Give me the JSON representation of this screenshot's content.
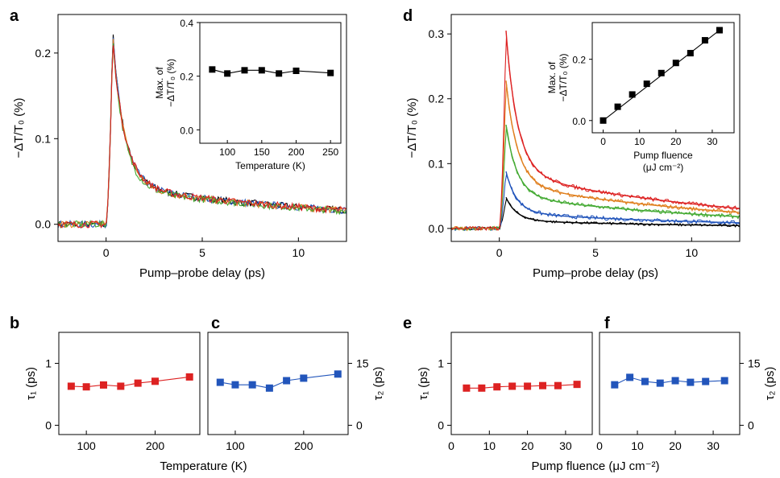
{
  "chart_data": [
    {
      "id": "a",
      "panel_label": "a",
      "type": "line",
      "xlabel": "Pump–probe delay (ps)",
      "ylabel": "−ΔT/T₀ (%)",
      "xlim": [
        -2.5,
        12.5
      ],
      "ylim": [
        -0.02,
        0.245
      ],
      "xticks": [
        0,
        5,
        10
      ],
      "yticks": [
        0.0,
        0.1,
        0.2
      ],
      "ytick_labels": [
        "0.0",
        "0.1",
        "0.2"
      ],
      "series": [
        {
          "color": "#000000",
          "peak": 0.225,
          "a1": 0.165,
          "tau1": 0.63,
          "a2": 0.045,
          "tau2": 12,
          "offset": 0.0,
          "noise": 0.004
        },
        {
          "color": "#2255bb",
          "peak": 0.222,
          "a1": 0.163,
          "tau1": 0.63,
          "a2": 0.045,
          "tau2": 12,
          "offset": 0.0,
          "noise": 0.004
        },
        {
          "color": "#e08020",
          "peak": 0.22,
          "a1": 0.161,
          "tau1": 0.64,
          "a2": 0.044,
          "tau2": 12,
          "offset": 0.0,
          "noise": 0.004
        },
        {
          "color": "#44aa33",
          "peak": 0.218,
          "a1": 0.16,
          "tau1": 0.62,
          "a2": 0.043,
          "tau2": 12,
          "offset": 0.0,
          "noise": 0.004
        },
        {
          "color": "#dd2222",
          "peak": 0.216,
          "a1": 0.158,
          "tau1": 0.66,
          "a2": 0.045,
          "tau2": 12,
          "offset": 0.0,
          "noise": 0.004
        }
      ],
      "inset": {
        "type": "line",
        "xlabel": "Temperature (K)",
        "ylabel_line1": "Max. of",
        "ylabel_line2": "−ΔT/T₀ (%)",
        "xlim": [
          60,
          265
        ],
        "ylim": [
          -0.05,
          0.4
        ],
        "xticks": [
          100,
          150,
          200,
          250
        ],
        "yticks": [
          0.0,
          0.2,
          0.4
        ],
        "ytick_labels": [
          "0.0",
          "0.2",
          "0.4"
        ],
        "x": [
          78,
          100,
          125,
          150,
          175,
          200,
          250
        ],
        "y": [
          0.225,
          0.21,
          0.222,
          0.222,
          0.21,
          0.22,
          0.212
        ]
      }
    },
    {
      "id": "d",
      "panel_label": "d",
      "type": "line",
      "xlabel": "Pump–probe delay (ps)",
      "ylabel": "−ΔT/T₀ (%)",
      "xlim": [
        -2.5,
        12.5
      ],
      "ylim": [
        -0.02,
        0.33
      ],
      "xticks": [
        0,
        5,
        10
      ],
      "yticks": [
        0.0,
        0.1,
        0.2,
        0.3
      ],
      "ytick_labels": [
        "0.0",
        "0.1",
        "0.2",
        "0.3"
      ],
      "series": [
        {
          "color": "#000000",
          "peak": 0.048,
          "a1": 0.033,
          "tau1": 0.6,
          "a2": 0.012,
          "tau2": 12,
          "offset": 0.0,
          "noise": 0.002
        },
        {
          "color": "#2255bb",
          "peak": 0.088,
          "a1": 0.058,
          "tau1": 0.6,
          "a2": 0.024,
          "tau2": 12,
          "offset": 0.0,
          "noise": 0.003
        },
        {
          "color": "#44aa33",
          "peak": 0.16,
          "a1": 0.1,
          "tau1": 0.62,
          "a2": 0.05,
          "tau2": 12,
          "offset": 0.0,
          "noise": 0.003
        },
        {
          "color": "#e08020",
          "peak": 0.228,
          "a1": 0.148,
          "tau1": 0.63,
          "a2": 0.068,
          "tau2": 12,
          "offset": 0.0,
          "noise": 0.003
        },
        {
          "color": "#dd2222",
          "peak": 0.305,
          "a1": 0.2,
          "tau1": 0.65,
          "a2": 0.085,
          "tau2": 12,
          "offset": 0.0,
          "noise": 0.003
        }
      ],
      "inset": {
        "type": "line",
        "xlabel_line1": "Pump fluence",
        "xlabel_line2": "(μJ cm⁻²)",
        "ylabel_line1": "Max. of",
        "ylabel_line2": "−ΔT/T₀ (%)",
        "xlim": [
          -3,
          36
        ],
        "ylim": [
          -0.04,
          0.32
        ],
        "xticks": [
          0,
          10,
          20,
          30
        ],
        "yticks": [
          0.0,
          0.2
        ],
        "ytick_labels": [
          "0.0",
          "0.2"
        ],
        "x": [
          0,
          4,
          8,
          12,
          16,
          20,
          24,
          28,
          32
        ],
        "y": [
          0.0,
          0.045,
          0.085,
          0.12,
          0.155,
          0.188,
          0.22,
          0.262,
          0.295
        ]
      }
    },
    {
      "id": "b",
      "panel_label": "b",
      "type": "line",
      "xlabel": "Temperature (K)",
      "ylabel": "τ₁ (ps)",
      "xlim": [
        60,
        265
      ],
      "ylim": [
        -0.15,
        1.5
      ],
      "xticks": [
        100,
        200
      ],
      "yticks": [
        0,
        1
      ],
      "ytick_labels": [
        "0",
        "1"
      ],
      "series": [
        {
          "color": "#dd2222",
          "x": [
            78,
            100,
            125,
            150,
            175,
            200,
            250
          ],
          "y": [
            0.63,
            0.62,
            0.65,
            0.63,
            0.68,
            0.71,
            0.78
          ]
        }
      ]
    },
    {
      "id": "c",
      "panel_label": "c",
      "type": "line",
      "xlabel": "Temperature (K)",
      "ylabel": "τ₂ (ps)",
      "xlim": [
        60,
        265
      ],
      "ylim": [
        -2.25,
        22.5
      ],
      "xticks": [
        100,
        200
      ],
      "yticks": [
        0,
        15
      ],
      "ytick_labels": [
        "0",
        "15"
      ],
      "series": [
        {
          "color": "#2255bb",
          "x": [
            78,
            100,
            125,
            150,
            175,
            200,
            250
          ],
          "y": [
            10.4,
            9.8,
            9.8,
            9.0,
            10.8,
            11.4,
            12.4
          ]
        }
      ]
    },
    {
      "id": "e",
      "panel_label": "e",
      "type": "line",
      "xlabel": "Pump fluence (μJ cm⁻²)",
      "ylabel": "τ₁ (ps)",
      "xlim": [
        0,
        37
      ],
      "ylim": [
        -0.15,
        1.5
      ],
      "xticks": [
        0,
        10,
        20,
        30
      ],
      "yticks": [
        0,
        1
      ],
      "ytick_labels": [
        "0",
        "1"
      ],
      "series": [
        {
          "color": "#dd2222",
          "x": [
            4,
            8,
            12,
            16,
            20,
            24,
            28,
            33
          ],
          "y": [
            0.6,
            0.6,
            0.62,
            0.63,
            0.63,
            0.64,
            0.64,
            0.66
          ]
        }
      ]
    },
    {
      "id": "f",
      "panel_label": "f",
      "type": "line",
      "xlabel": "Pump fluence (μJ cm⁻²)",
      "ylabel": "τ₂ (ps)",
      "xlim": [
        0,
        37
      ],
      "ylim": [
        -2.25,
        22.5
      ],
      "xticks": [
        0,
        10,
        20,
        30
      ],
      "yticks": [
        0,
        15
      ],
      "ytick_labels": [
        "0",
        "15"
      ],
      "series": [
        {
          "color": "#2255bb",
          "x": [
            4,
            8,
            12,
            16,
            20,
            24,
            28,
            33
          ],
          "y": [
            9.8,
            11.6,
            10.6,
            10.2,
            10.8,
            10.4,
            10.6,
            10.8
          ]
        }
      ]
    }
  ]
}
